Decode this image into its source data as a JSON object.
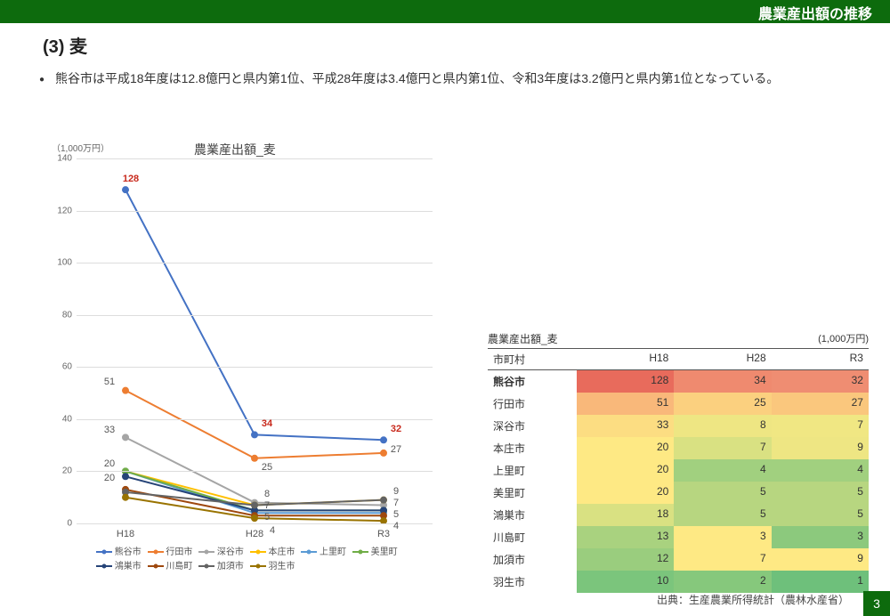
{
  "header": {
    "title": "農業産出額の推移"
  },
  "section": {
    "number_title": "(3) 麦",
    "bullet": "熊谷市は平成18年度は12.8億円と県内第1位、平成28年度は3.4億円と県内第1位、令和3年度は3.2億円と県内第1位となっている。"
  },
  "chart": {
    "type": "line",
    "unit_label": "（1,000万円）",
    "title": "農業産出額_麦",
    "ylim": [
      0,
      140
    ],
    "ytick_step": 20,
    "categories": [
      "H18",
      "H28",
      "R3"
    ],
    "grid_color": "#dddddd",
    "axis_color": "#bbbbbb",
    "highlight_color": "#c8291c",
    "line_width": 2,
    "marker_size": 4,
    "series": [
      {
        "name": "熊谷市",
        "color": "#4472c4",
        "values": [
          128,
          34,
          32
        ],
        "highlight": true
      },
      {
        "name": "行田市",
        "color": "#ed7d31",
        "values": [
          51,
          25,
          27
        ]
      },
      {
        "name": "深谷市",
        "color": "#a5a5a5",
        "values": [
          33,
          8,
          7
        ]
      },
      {
        "name": "本庄市",
        "color": "#ffc000",
        "values": [
          20,
          7,
          9
        ]
      },
      {
        "name": "上里町",
        "color": "#5b9bd5",
        "values": [
          20,
          4,
          4
        ]
      },
      {
        "name": "美里町",
        "color": "#70ad47",
        "values": [
          20,
          5,
          5
        ]
      },
      {
        "name": "鴻巣市",
        "color": "#264478",
        "values": [
          18,
          5,
          5
        ]
      },
      {
        "name": "川島町",
        "color": "#9e480e",
        "values": [
          13,
          3,
          3
        ]
      },
      {
        "name": "加須市",
        "color": "#636363",
        "values": [
          12,
          7,
          9
        ]
      },
      {
        "name": "羽生市",
        "color": "#997300",
        "values": [
          10,
          2,
          1
        ]
      }
    ],
    "extra_labels_h18": [
      "20"
    ],
    "extra_labels_h28": [
      "4"
    ],
    "legend_order": [
      "熊谷市",
      "行田市",
      "深谷市",
      "本庄市",
      "上里町",
      "美里町",
      "鴻巣市",
      "川島町",
      "加須市",
      "羽生市"
    ]
  },
  "table": {
    "title": "農業産出額_麦",
    "unit": "(1,000万円)",
    "columns": [
      "市町村",
      "H18",
      "H28",
      "R3"
    ],
    "rows": [
      {
        "name": "熊谷市",
        "bold": true,
        "cells": [
          {
            "v": 128,
            "bg": "#e86b5c"
          },
          {
            "v": 34,
            "bg": "#ef8a6f"
          },
          {
            "v": 32,
            "bg": "#ef8d72"
          }
        ]
      },
      {
        "name": "行田市",
        "cells": [
          {
            "v": 51,
            "bg": "#f9b87a"
          },
          {
            "v": 25,
            "bg": "#fbd07f"
          },
          {
            "v": 27,
            "bg": "#fac77d"
          }
        ]
      },
      {
        "name": "深谷市",
        "cells": [
          {
            "v": 33,
            "bg": "#fcdd82"
          },
          {
            "v": 8,
            "bg": "#eee683"
          },
          {
            "v": 7,
            "bg": "#f0e783"
          }
        ]
      },
      {
        "name": "本庄市",
        "cells": [
          {
            "v": 20,
            "bg": "#fee984"
          },
          {
            "v": 7,
            "bg": "#d9e182"
          },
          {
            "v": 9,
            "bg": "#eee683"
          }
        ]
      },
      {
        "name": "上里町",
        "cells": [
          {
            "v": 20,
            "bg": "#fee984"
          },
          {
            "v": 4,
            "bg": "#a1d07f"
          },
          {
            "v": 4,
            "bg": "#a1d07f"
          }
        ]
      },
      {
        "name": "美里町",
        "cells": [
          {
            "v": 20,
            "bg": "#fee984"
          },
          {
            "v": 5,
            "bg": "#b7d680"
          },
          {
            "v": 5,
            "bg": "#b7d680"
          }
        ]
      },
      {
        "name": "鴻巣市",
        "cells": [
          {
            "v": 18,
            "bg": "#d9e182"
          },
          {
            "v": 5,
            "bg": "#b7d680"
          },
          {
            "v": 5,
            "bg": "#b7d680"
          }
        ]
      },
      {
        "name": "川島町",
        "cells": [
          {
            "v": 13,
            "bg": "#a9d27f"
          },
          {
            "v": 3,
            "bg": "#fee984"
          },
          {
            "v": 3,
            "bg": "#8cc97d"
          }
        ]
      },
      {
        "name": "加須市",
        "cells": [
          {
            "v": 12,
            "bg": "#9acd7e"
          },
          {
            "v": 7,
            "bg": "#fee984"
          },
          {
            "v": 9,
            "bg": "#fee984"
          }
        ]
      },
      {
        "name": "羽生市",
        "cells": [
          {
            "v": 10,
            "bg": "#7bc57c"
          },
          {
            "v": 2,
            "bg": "#86c87c"
          },
          {
            "v": 1,
            "bg": "#6ec07b"
          }
        ]
      }
    ]
  },
  "source": "出典：生産農業所得統計（農林水産省）",
  "page_number": "3"
}
